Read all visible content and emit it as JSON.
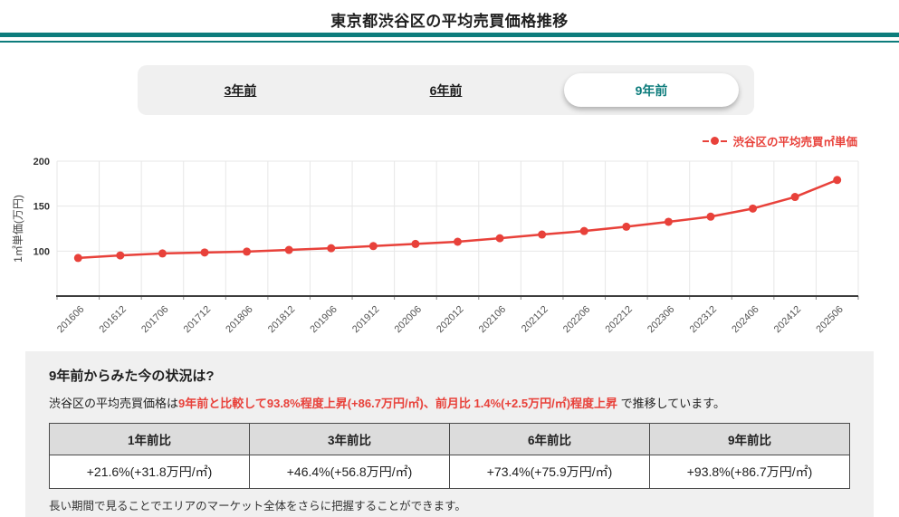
{
  "header": {
    "title": "東京都渋谷区の平均売買価格推移"
  },
  "tabs": {
    "items": [
      {
        "label": "3年前",
        "active": false
      },
      {
        "label": "6年前",
        "active": false
      },
      {
        "label": "9年前",
        "active": true
      }
    ]
  },
  "chart_data": {
    "type": "line",
    "legend": "渋谷区の平均売買㎡単価",
    "ylabel": "1㎡単価(万円)",
    "ylim": [
      50,
      200
    ],
    "yticks": [
      100,
      150,
      200
    ],
    "grid": true,
    "legend_position": "top-right",
    "categories": [
      "201606",
      "201612",
      "201706",
      "201712",
      "201806",
      "201812",
      "201906",
      "201912",
      "202006",
      "202012",
      "202106",
      "202112",
      "202206",
      "202212",
      "202306",
      "202312",
      "202406",
      "202412",
      "202506"
    ],
    "series": [
      {
        "name": "渋谷区の平均売買㎡単価",
        "color": "#e8413a",
        "values": [
          92.4,
          95.2,
          97.4,
          98.5,
          99.4,
          101.3,
          103.2,
          105.6,
          108.0,
          110.4,
          114.3,
          118.4,
          122.3,
          127.1,
          132.6,
          138.3,
          147.3,
          160.2,
          179.1
        ]
      }
    ]
  },
  "summary": {
    "heading": "9年前からみた今の状況は?",
    "lead_prefix": "渋谷区の平均売買価格は",
    "lead_highlight": "9年前と比較して93.8%程度上昇(+86.7万円/㎡)、前月比 1.4%(+2.5万円/㎡)程度上昇",
    "lead_suffix": " で推移しています。",
    "note": "長い期間で見ることでエリアのマーケット全体をさらに把握することができます。"
  },
  "comparison": {
    "headers": [
      "1年前比",
      "3年前比",
      "6年前比",
      "9年前比"
    ],
    "values": [
      "+21.6%(+31.8万円/㎡)",
      "+46.4%(+56.8万円/㎡)",
      "+73.4%(+75.9万円/㎡)",
      "+93.8%(+86.7万円/㎡)"
    ]
  },
  "colors": {
    "accent_teal": "#0d7c7c",
    "series_red": "#e8413a",
    "panel_bg": "#f0f0f0",
    "table_header_bg": "#dcdcdc"
  }
}
